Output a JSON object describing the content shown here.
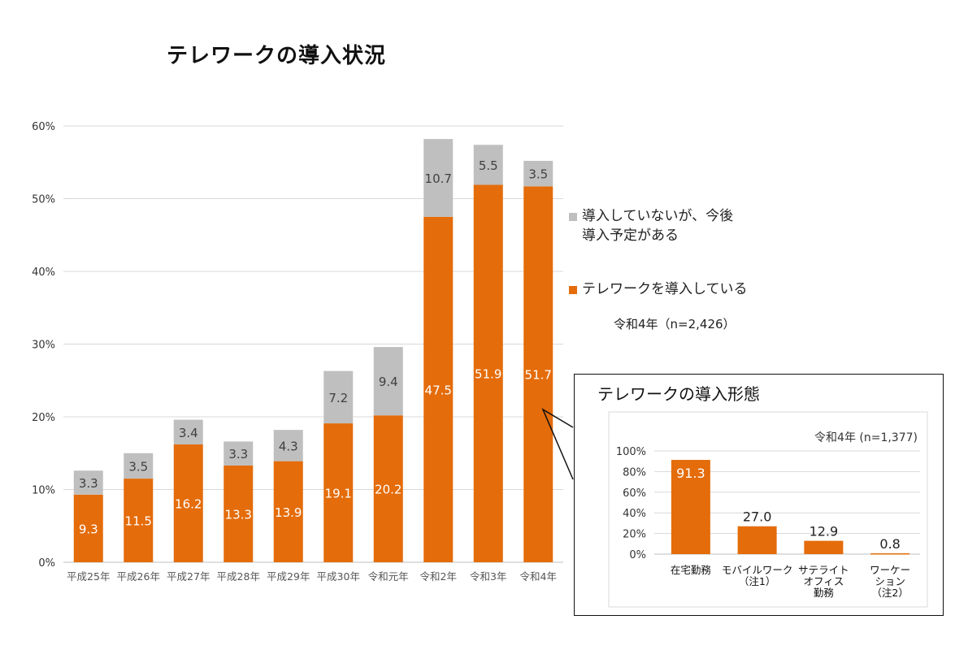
{
  "title": "テレワークの導入状況",
  "legend": {
    "planned": "導入していないが、今後\n導入予定がある",
    "introduced": "テレワークを導入している",
    "note": "令和4年（n=2,426）"
  },
  "colors": {
    "introduced": "#E46C0A",
    "planned": "#BFBFBF",
    "grid": "#D9D9D9"
  },
  "chart_data": [
    {
      "type": "bar",
      "stacked": true,
      "title": "テレワークの導入状況",
      "categories": [
        "平成25年",
        "平成26年",
        "平成27年",
        "平成28年",
        "平成29年",
        "平成30年",
        "令和元年",
        "令和2年",
        "令和3年",
        "令和4年"
      ],
      "series": [
        {
          "name": "テレワークを導入している",
          "values": [
            9.3,
            11.5,
            16.2,
            13.3,
            13.9,
            19.1,
            20.2,
            47.5,
            51.9,
            51.7
          ]
        },
        {
          "name": "導入していないが、今後導入予定がある",
          "values": [
            3.3,
            3.5,
            3.4,
            3.3,
            4.3,
            7.2,
            9.4,
            10.7,
            5.5,
            3.5
          ]
        }
      ],
      "yticks": [
        "0%",
        "10%",
        "20%",
        "30%",
        "40%",
        "50%",
        "60%"
      ],
      "ylim": [
        0,
        60
      ],
      "grid": true,
      "legend_position": "right"
    },
    {
      "type": "bar",
      "title": "テレワークの導入形態",
      "note": "令和4年 (n=1,377)",
      "categories": [
        "在宅勤務",
        "モバイルワーク\n（注1）",
        "サテライト\nオフィス\n勤務",
        "ワーケー\nション\n（注2）"
      ],
      "values": [
        91.3,
        27.0,
        12.9,
        0.8
      ],
      "value_labels": [
        "91.3",
        "27.0",
        "12.9",
        "0.8"
      ],
      "yticks": [
        "0%",
        "20%",
        "40%",
        "60%",
        "80%",
        "100%"
      ],
      "ylim": [
        0,
        100
      ],
      "grid": true
    }
  ]
}
